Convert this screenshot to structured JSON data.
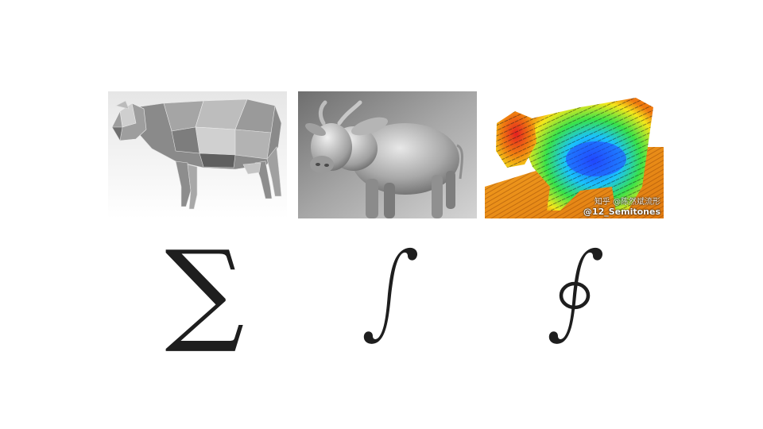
{
  "panels": [
    {
      "name": "low-poly-cow",
      "style": "wireframe-grey"
    },
    {
      "name": "smooth-shaded-cow",
      "style": "grey-render"
    },
    {
      "name": "vector-field-cow",
      "style": "rainbow-flow",
      "watermarks": {
        "zhihu": "知乎 @陈然斌流形",
        "semitones": "@12_Semitones"
      }
    }
  ],
  "symbols": {
    "sum": "∑",
    "integral": "∫",
    "contour_integral": "∮"
  },
  "colors": {
    "background": "#ffffff",
    "symbol": "#1e1e1e"
  }
}
